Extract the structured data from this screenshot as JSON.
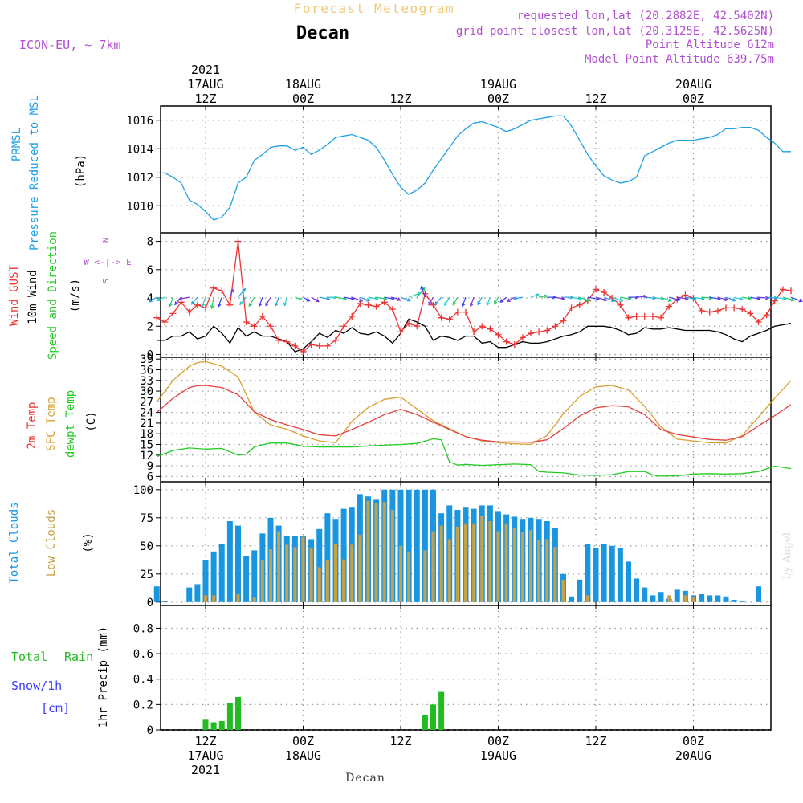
{
  "header": {
    "title": "Forecast Meteogram",
    "location": "Decan",
    "model": "ICON-EU, ~ 7km",
    "requested": "requested lon,lat (20.2882E, 42.5402N)",
    "grid": "grid point closest lon,lat (20.3125E, 42.5625N)",
    "point_alt": "Point Altitude 612m",
    "model_alt": "Model Point Altitude 639.75m",
    "footer": "Decan",
    "watermark": "by Angel"
  },
  "time_axis": {
    "top": [
      {
        "hour": 12,
        "lines": [
          "2021",
          "17AUG",
          "12Z"
        ]
      },
      {
        "hour": 24,
        "lines": [
          "18AUG",
          "00Z"
        ]
      },
      {
        "hour": 36,
        "lines": [
          "12Z"
        ]
      },
      {
        "hour": 48,
        "lines": [
          "19AUG",
          "00Z"
        ]
      },
      {
        "hour": 60,
        "lines": [
          "12Z"
        ]
      },
      {
        "hour": 72,
        "lines": [
          "20AUG",
          "00Z"
        ]
      }
    ],
    "bottom": [
      {
        "hour": 12,
        "lines": [
          "12Z",
          "17AUG",
          "2021"
        ]
      },
      {
        "hour": 24,
        "lines": [
          "00Z",
          "18AUG"
        ]
      },
      {
        "hour": 36,
        "lines": [
          "12Z"
        ]
      },
      {
        "hour": 48,
        "lines": [
          "00Z",
          "19AUG"
        ]
      },
      {
        "hour": 60,
        "lines": [
          "12Z"
        ]
      },
      {
        "hour": 72,
        "lines": [
          "00Z",
          "20AUG"
        ]
      }
    ]
  },
  "panels": {
    "pressure": {
      "labels": [
        "PRMSL",
        "Pressure Reduced to MSL",
        "(hPa)"
      ]
    },
    "wind": {
      "labels": [
        "Wind GUST",
        "10m Wind",
        "Speed and Direction",
        "(m/s)"
      ],
      "compass": [
        "N",
        "W <-|-> E",
        "S"
      ]
    },
    "temp": {
      "labels": [
        "2m Temp",
        "SFC Temp",
        "dewpt Temp",
        "(C)"
      ]
    },
    "clouds": {
      "labels": [
        "Total Clouds",
        "Low Clouds",
        "(%)"
      ]
    },
    "precip": {
      "labels": [
        "Total",
        "Rain",
        "Snow/1h",
        "[cm]",
        "1hr Precip (mm)"
      ]
    }
  },
  "colors": {
    "pressure": "#1ea0e6",
    "gust": "#ee3333",
    "wind": "#000000",
    "temp2m": "#e84040",
    "sfc": "#d8a030",
    "dew": "#22cc22",
    "total_clouds": "#1a96e0",
    "low_clouds": "#c8a048",
    "rain": "#22bb22",
    "snow": "#3c3cff",
    "title": "#f0c878",
    "meta": "#b050d0"
  },
  "chart_data": [
    {
      "type": "line",
      "name": "PRMSL",
      "ylabel": "hPa",
      "ylim": [
        1008.1,
        1017.0
      ],
      "yticks": [
        1010,
        1012,
        1014,
        1016
      ],
      "x": [
        6,
        7,
        8,
        9,
        10,
        11,
        12,
        13,
        14,
        15,
        16,
        17,
        18,
        19,
        20,
        21,
        22,
        23,
        24,
        25,
        26,
        27,
        28,
        29,
        30,
        31,
        32,
        33,
        34,
        35,
        36,
        37,
        38,
        39,
        40,
        41,
        42,
        43,
        44,
        45,
        46,
        47,
        48,
        49,
        50,
        51,
        52,
        53,
        54,
        55,
        56,
        57,
        58,
        59,
        60,
        61,
        62,
        63,
        64,
        65,
        66,
        67,
        68,
        69,
        70,
        71,
        72,
        73,
        74,
        75,
        76,
        77,
        78,
        79,
        80,
        81,
        82,
        83,
        84
      ],
      "values": [
        1012.3,
        1012.3,
        1012.0,
        1011.6,
        1010.4,
        1010.1,
        1009.6,
        1009.0,
        1009.2,
        1009.9,
        1011.6,
        1012.0,
        1013.2,
        1013.6,
        1014.1,
        1014.2,
        1014.2,
        1013.9,
        1014.1,
        1013.6,
        1013.9,
        1014.3,
        1014.8,
        1014.9,
        1015.0,
        1014.8,
        1014.6,
        1014.1,
        1013.2,
        1012.2,
        1011.3,
        1010.8,
        1011.1,
        1011.6,
        1012.5,
        1013.3,
        1014.1,
        1014.9,
        1015.4,
        1015.8,
        1015.9,
        1015.7,
        1015.5,
        1015.2,
        1015.4,
        1015.7,
        1016.0,
        1016.1,
        1016.2,
        1016.3,
        1016.3,
        1015.6,
        1014.6,
        1013.6,
        1012.8,
        1012.1,
        1011.8,
        1011.6,
        1011.7,
        1012.0,
        1013.5,
        1013.8,
        1014.1,
        1014.4,
        1014.6,
        1014.6,
        1014.6,
        1014.7,
        1014.8,
        1015.0,
        1015.4,
        1015.4,
        1015.5,
        1015.5,
        1015.3,
        1014.8,
        1014.4,
        1013.8,
        1013.8
      ]
    },
    {
      "type": "line",
      "name": "Wind GUST / 10m Wind",
      "ylabel": "m/s",
      "ylim": [
        -0.2,
        8.6
      ],
      "yticks": [
        0,
        2,
        4,
        6,
        8
      ],
      "x": [
        6,
        7,
        8,
        9,
        10,
        11,
        12,
        13,
        14,
        15,
        16,
        17,
        18,
        19,
        20,
        21,
        22,
        23,
        24,
        25,
        26,
        27,
        28,
        29,
        30,
        31,
        32,
        33,
        34,
        35,
        36,
        37,
        38,
        39,
        40,
        41,
        42,
        43,
        44,
        45,
        46,
        47,
        48,
        49,
        50,
        51,
        52,
        53,
        54,
        55,
        56,
        57,
        58,
        59,
        60,
        61,
        62,
        63,
        64,
        65,
        66,
        67,
        68,
        69,
        70,
        71,
        72,
        73,
        74,
        75,
        76,
        77,
        78,
        79,
        80,
        81,
        82,
        83,
        84
      ],
      "gust": [
        2.6,
        2.3,
        2.9,
        3.7,
        3.0,
        3.5,
        3.3,
        4.7,
        4.5,
        3.5,
        8.0,
        2.3,
        2.0,
        2.7,
        2.0,
        1.0,
        0.9,
        0.6,
        0.2,
        0.7,
        0.6,
        0.6,
        1.0,
        2.0,
        2.7,
        3.6,
        3.5,
        3.4,
        3.7,
        3.2,
        1.6,
        2.2,
        2.0,
        4.3,
        3.5,
        2.6,
        2.5,
        3.0,
        3.0,
        1.6,
        2.0,
        1.8,
        1.4,
        0.9,
        0.7,
        1.2,
        1.5,
        1.6,
        1.7,
        2.0,
        2.4,
        3.3,
        3.5,
        3.8,
        4.6,
        4.4,
        4.0,
        3.5,
        2.6,
        2.7,
        2.7,
        2.7,
        2.6,
        3.4,
        3.9,
        4.2,
        4.0,
        3.1,
        3.0,
        3.1,
        3.3,
        3.3,
        3.2,
        2.9,
        2.3,
        2.8,
        3.8,
        4.6,
        4.5
      ],
      "wind": [
        1.0,
        1.0,
        1.3,
        1.3,
        1.6,
        1.1,
        1.3,
        2.0,
        1.5,
        0.8,
        1.9,
        1.3,
        1.6,
        1.3,
        1.3,
        1.1,
        0.9,
        0.2,
        0.4,
        0.9,
        1.5,
        1.2,
        1.7,
        1.5,
        1.9,
        1.5,
        1.4,
        1.6,
        1.3,
        0.8,
        1.5,
        2.5,
        2.3,
        2.0,
        1.0,
        1.3,
        1.2,
        1.0,
        1.3,
        1.3,
        0.8,
        0.9,
        0.5,
        0.5,
        0.7,
        0.9,
        0.8,
        0.8,
        0.9,
        1.1,
        1.3,
        1.4,
        1.6,
        2.0,
        2.0,
        2.0,
        1.9,
        1.7,
        1.4,
        1.5,
        1.9,
        1.8,
        1.8,
        1.9,
        1.8,
        1.7,
        1.7,
        1.7,
        1.7,
        1.6,
        1.4,
        1.1,
        0.9,
        1.3,
        1.5,
        1.7,
        2.0,
        2.1,
        2.2
      ],
      "direction_deg": [
        60,
        70,
        20,
        40,
        80,
        40,
        20,
        10,
        20,
        200,
        220,
        40,
        30,
        20,
        30,
        20,
        15,
        290,
        300,
        300,
        280,
        270,
        280,
        280,
        290,
        290,
        280,
        280,
        280,
        290,
        290,
        250,
        220,
        160,
        30,
        40,
        30,
        30,
        20,
        20,
        30,
        20,
        30,
        50,
        60,
        80,
        250,
        260,
        270,
        280,
        270,
        280,
        290,
        280,
        285,
        290,
        290,
        280,
        270,
        265,
        275,
        280,
        290,
        285,
        280,
        280,
        280,
        275,
        280,
        285,
        290,
        285,
        280,
        280,
        275,
        275,
        280,
        285,
        290
      ]
    },
    {
      "type": "line",
      "name": "Temperature",
      "ylabel": "C",
      "ylim": [
        4.5,
        39.5
      ],
      "yticks": [
        6,
        9,
        12,
        15,
        18,
        21,
        24,
        27,
        30,
        33,
        36,
        39
      ],
      "x": [
        6,
        8,
        10,
        11,
        12,
        14,
        16,
        18,
        20,
        22,
        24,
        26,
        28,
        30,
        32,
        34,
        36,
        38,
        40,
        42,
        44,
        46,
        48,
        50,
        52,
        54,
        56,
        58,
        60,
        62,
        64,
        66,
        68,
        70,
        72,
        74,
        76,
        78,
        80,
        82,
        84
      ],
      "t2m": [
        24,
        28,
        31,
        31.5,
        31.6,
        31,
        29,
        24.2,
        22,
        20.5,
        19.2,
        17.7,
        17.4,
        19.2,
        21.2,
        23.4,
        24.9,
        23.4,
        21.3,
        19.2,
        17.2,
        16.2,
        15.7,
        15.7,
        15.6,
        16.3,
        19.5,
        23,
        25.3,
        25.9,
        25.6,
        23.4,
        19.2,
        17.8,
        17.1,
        16.4,
        16.2,
        17.2,
        20.2,
        23.1,
        26.2
      ],
      "sfc": [
        27,
        33,
        37,
        38,
        38.3,
        37,
        34,
        24,
        20.5,
        19.3,
        17.4,
        16,
        15.5,
        21.5,
        25.4,
        27.7,
        28.3,
        25,
        21.7,
        19.4,
        17.2,
        16,
        15.5,
        15.2,
        15,
        17.5,
        23.6,
        28.5,
        31.2,
        31.6,
        30.3,
        25.7,
        20,
        16.5,
        16,
        15.5,
        15.4,
        17.5,
        22.7,
        28,
        33
      ]
    },
    {
      "type": "line",
      "name": "Dewpoint",
      "ylabel": "C",
      "x": [
        6,
        8,
        10,
        12,
        14,
        16,
        17,
        18,
        19,
        20,
        22,
        24,
        26,
        28,
        30,
        32,
        34,
        36,
        38,
        40,
        41,
        42,
        43,
        44,
        46,
        48,
        50,
        52,
        53,
        54,
        56,
        58,
        60,
        62,
        64,
        66,
        67,
        68,
        70,
        72,
        74,
        76,
        78,
        80,
        82,
        84
      ],
      "dew": [
        11.6,
        13.3,
        14,
        13.7,
        13.9,
        12,
        12.3,
        14.3,
        14.9,
        15.4,
        15.4,
        14.5,
        14.3,
        14.3,
        14.3,
        14.6,
        14.8,
        15,
        15.3,
        16.6,
        16.3,
        10.1,
        9.2,
        9.4,
        9.1,
        9.3,
        9.5,
        9.3,
        7.4,
        7.2,
        7,
        6.4,
        6.3,
        6.5,
        7.4,
        7.4,
        6.4,
        6.1,
        6.2,
        6.7,
        6.8,
        6.7,
        6.8,
        7.4,
        8.9,
        8.2
      ],
      "dew_end": 8.3
    },
    {
      "type": "bar",
      "name": "Clouds",
      "ylabel": "%",
      "ylim": [
        -3,
        107
      ],
      "yticks": [
        0,
        25,
        50,
        75,
        100
      ],
      "x": [
        6,
        7,
        8,
        9,
        10,
        11,
        12,
        13,
        14,
        15,
        16,
        17,
        18,
        19,
        20,
        21,
        22,
        23,
        24,
        25,
        26,
        27,
        28,
        29,
        30,
        31,
        32,
        33,
        34,
        35,
        36,
        37,
        38,
        39,
        40,
        41,
        42,
        43,
        44,
        45,
        46,
        47,
        48,
        49,
        50,
        51,
        52,
        53,
        54,
        55,
        56,
        57,
        58,
        59,
        60,
        61,
        62,
        63,
        64,
        65,
        66,
        67,
        68,
        69,
        70,
        71,
        72,
        73,
        74,
        75,
        76,
        77,
        78,
        79,
        80,
        81,
        82,
        83,
        84
      ],
      "total": [
        14,
        1,
        0,
        0,
        13,
        16,
        37,
        45,
        52,
        72,
        68,
        41,
        46,
        61,
        75,
        68,
        59,
        59,
        59,
        56,
        65,
        79,
        74,
        83,
        84,
        96,
        94,
        91,
        100,
        100,
        100,
        100,
        100,
        100,
        100,
        79,
        86,
        82,
        84,
        83,
        86,
        86,
        81,
        78,
        76,
        74,
        75,
        74,
        72,
        66,
        25,
        5,
        20,
        52,
        48,
        52,
        50,
        48,
        36,
        21,
        13,
        6,
        9,
        3,
        11,
        10,
        6,
        7,
        6,
        6,
        5,
        2,
        1,
        0,
        14,
        0,
        0,
        0,
        0
      ],
      "low": [
        0,
        0,
        0,
        0,
        0,
        0,
        6,
        6,
        0,
        0,
        7,
        0,
        4,
        37,
        47,
        63,
        51,
        49,
        58,
        48,
        31,
        37,
        52,
        38,
        51,
        60,
        90,
        88,
        89,
        82,
        50,
        45,
        0,
        46,
        63,
        68,
        56,
        67,
        70,
        70,
        77,
        72,
        63,
        70,
        66,
        62,
        64,
        55,
        56,
        49,
        20,
        0,
        0,
        6,
        0,
        0,
        0,
        0,
        0,
        0,
        0,
        0,
        0,
        6,
        0,
        6,
        4,
        0,
        0,
        0,
        0,
        0,
        0,
        0,
        0,
        0,
        0,
        0,
        0
      ]
    },
    {
      "type": "bar",
      "name": "1hr Precip",
      "ylabel": "mm",
      "ylim": [
        0,
        0.98
      ],
      "yticks": [
        0,
        0.2,
        0.4,
        0.6,
        0.8
      ],
      "x": [
        12,
        13,
        14,
        15,
        16,
        39,
        40,
        41
      ],
      "rain": [
        0.08,
        0.06,
        0.07,
        0.21,
        0.26,
        0.12,
        0.2,
        0.3
      ]
    }
  ]
}
